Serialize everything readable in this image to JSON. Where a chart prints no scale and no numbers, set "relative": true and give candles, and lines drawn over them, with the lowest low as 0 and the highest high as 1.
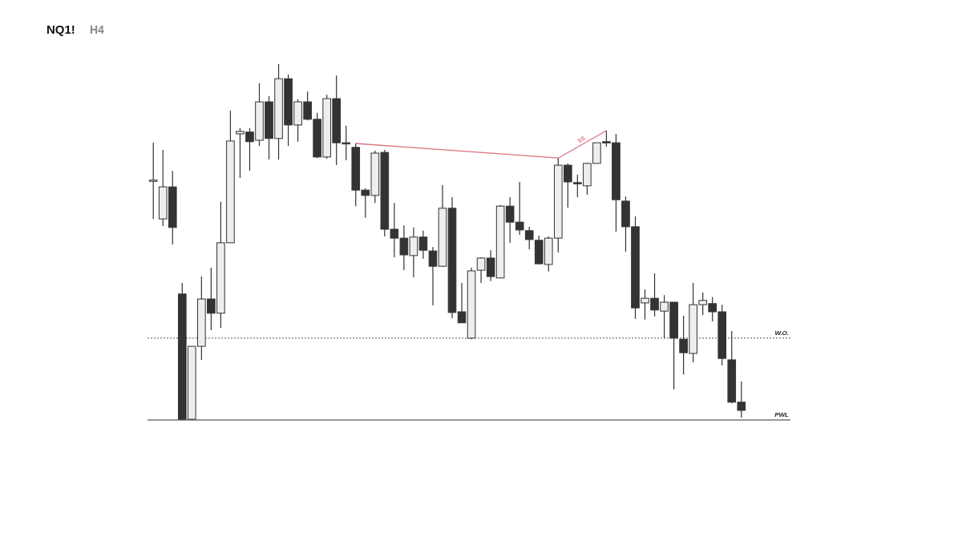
{
  "chart_data": {
    "type": "candlestick",
    "title": "NQ1!",
    "subtitle": "H4",
    "relative": true,
    "categories": [
      null,
      null,
      null,
      null,
      null,
      null,
      null,
      null,
      null,
      null,
      null,
      null,
      null,
      null,
      null,
      null,
      null,
      null,
      null,
      null,
      null,
      null,
      null,
      null,
      null,
      null,
      null,
      null,
      null,
      null,
      null,
      null,
      null,
      null,
      null,
      null,
      null,
      null,
      null,
      null,
      null,
      null,
      null,
      null,
      null,
      null,
      null,
      null,
      null,
      null,
      null,
      null,
      null,
      null,
      null,
      null,
      null,
      null,
      null,
      null,
      null,
      null
    ],
    "ohlc": [
      [
        0.673,
        0.779,
        0.565,
        0.674
      ],
      [
        0.565,
        0.759,
        0.545,
        0.655
      ],
      [
        0.655,
        0.7,
        0.493,
        0.541
      ],
      [
        0.354,
        0.385,
        0,
        0.002
      ],
      [
        0.002,
        0.207,
        0,
        0.207
      ],
      [
        0.207,
        0.403,
        0.169,
        0.34
      ],
      [
        0.34,
        0.428,
        0.252,
        0.3
      ],
      [
        0.3,
        0.613,
        0.259,
        0.498
      ],
      [
        0.498,
        0.869,
        0.498,
        0.784
      ],
      [
        0.804,
        0.82,
        0.68,
        0.811
      ],
      [
        0.809,
        0.82,
        0.7,
        0.782
      ],
      [
        0.786,
        0.946,
        0.77,
        0.894
      ],
      [
        0.894,
        0.91,
        0.732,
        0.791
      ],
      [
        0.791,
        1,
        0.732,
        0.959
      ],
      [
        0.959,
        0.971,
        0.77,
        0.829
      ],
      [
        0.829,
        0.901,
        0.782,
        0.894
      ],
      [
        0.894,
        0.923,
        0.842,
        0.845
      ],
      [
        0.845,
        0.863,
        0.736,
        0.739
      ],
      [
        0.739,
        0.914,
        0.734,
        0.903
      ],
      [
        0.903,
        0.968,
        0.716,
        0.779
      ],
      [
        0.779,
        0.827,
        0.73,
        0.777
      ],
      [
        0.766,
        0.777,
        0.601,
        0.646
      ],
      [
        0.646,
        0.651,
        0.568,
        0.631
      ],
      [
        0.631,
        0.757,
        0.61,
        0.75
      ],
      [
        0.752,
        0.759,
        0.516,
        0.536
      ],
      [
        0.536,
        0.61,
        0.457,
        0.511
      ],
      [
        0.511,
        0.547,
        0.421,
        0.464
      ],
      [
        0.462,
        0.541,
        0.401,
        0.514
      ],
      [
        0.514,
        0.532,
        0.453,
        0.477
      ],
      [
        0.475,
        0.486,
        0.322,
        0.432
      ],
      [
        0.432,
        0.66,
        0.43,
        0.595
      ],
      [
        0.595,
        0.626,
        0.286,
        0.302
      ],
      [
        0.304,
        0.385,
        0.273,
        0.273
      ],
      [
        0.23,
        0.428,
        0.227,
        0.419
      ],
      [
        0.421,
        0.457,
        0.385,
        0.455
      ],
      [
        0.455,
        0.477,
        0.39,
        0.403
      ],
      [
        0.399,
        0.604,
        0.399,
        0.601
      ],
      [
        0.601,
        0.626,
        0.498,
        0.556
      ],
      [
        0.556,
        0.669,
        0.52,
        0.534
      ],
      [
        0.532,
        0.543,
        0.48,
        0.507
      ],
      [
        0.505,
        0.518,
        0.437,
        0.439
      ],
      [
        0.437,
        0.516,
        0.417,
        0.511
      ],
      [
        0.511,
        0.736,
        0.471,
        0.716
      ],
      [
        0.716,
        0.721,
        0.597,
        0.669
      ],
      [
        0.667,
        0.689,
        0.626,
        0.664
      ],
      [
        0.658,
        0.723,
        0.633,
        0.721
      ],
      [
        0.721,
        0.779,
        0.721,
        0.779
      ],
      [
        0.782,
        0.813,
        0.768,
        0.781
      ],
      [
        0.779,
        0.804,
        0.529,
        0.619
      ],
      [
        0.615,
        0.628,
        0.473,
        0.543
      ],
      [
        0.543,
        0.572,
        0.284,
        0.315
      ],
      [
        0.329,
        0.367,
        0.282,
        0.342
      ],
      [
        0.342,
        0.412,
        0.291,
        0.309
      ],
      [
        0.306,
        0.351,
        0.23,
        0.331
      ],
      [
        0.331,
        0.331,
        0.086,
        0.23
      ],
      [
        0.227,
        0.293,
        0.128,
        0.189
      ],
      [
        0.187,
        0.385,
        0.162,
        0.324
      ],
      [
        0.324,
        0.358,
        0.295,
        0.336
      ],
      [
        0.327,
        0.345,
        0.277,
        0.304
      ],
      [
        0.304,
        0.324,
        0.153,
        0.173
      ],
      [
        0.169,
        0.25,
        0.047,
        0.05
      ],
      [
        0.05,
        0.108,
        0.007,
        0.027
      ]
    ],
    "series": [
      {
        "type": "line",
        "color": "#e0707e",
        "values": [
          null,
          null,
          null,
          null,
          null,
          null,
          null,
          null,
          null,
          null,
          null,
          null,
          null,
          null,
          null,
          null,
          null,
          null,
          null,
          null,
          null,
          0.777,
          null,
          null,
          null,
          null,
          null,
          null,
          null,
          null,
          null,
          null,
          null,
          null,
          null,
          null,
          null,
          null,
          null,
          null,
          null,
          null,
          0.736,
          null,
          null,
          null,
          null,
          0.813,
          null,
          null,
          null,
          null,
          null,
          null,
          null,
          null,
          null,
          null,
          null,
          null,
          null,
          null
        ]
      }
    ],
    "ref_lines": [
      {
        "axis": "y",
        "value": 0.23,
        "label": "W.O.",
        "line_style": "dotted",
        "color": "#555555"
      },
      {
        "axis": "y",
        "value": 0,
        "label": "PWL",
        "line_style": "solid",
        "color": "#333333"
      }
    ],
    "annotations": [
      "SS"
    ]
  }
}
